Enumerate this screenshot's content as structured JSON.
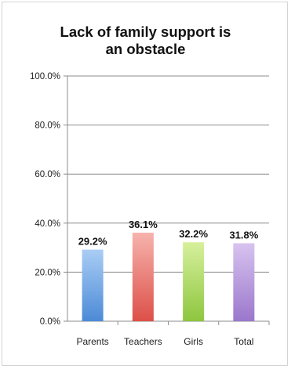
{
  "chart_data": {
    "type": "bar",
    "title_lines": [
      "Lack of family support is",
      "an obstacle"
    ],
    "categories": [
      "Parents",
      "Teachers",
      "Girls",
      "Total"
    ],
    "values": [
      29.2,
      36.1,
      32.2,
      31.8
    ],
    "data_labels": [
      "29.2%",
      "36.1%",
      "32.2%",
      "31.8%"
    ],
    "yticks": [
      "0.0%",
      "20.0%",
      "40.0%",
      "60.0%",
      "80.0%",
      "100.0%"
    ],
    "ylim": [
      0,
      100
    ],
    "grid": true,
    "legend": "none",
    "bar_colors": [
      [
        "#a9cdf5",
        "#4c8ad6"
      ],
      [
        "#f7b3ad",
        "#dc5048"
      ],
      [
        "#d7f09c",
        "#8dc63f"
      ],
      [
        "#d7c3ef",
        "#9b77cc"
      ]
    ]
  }
}
